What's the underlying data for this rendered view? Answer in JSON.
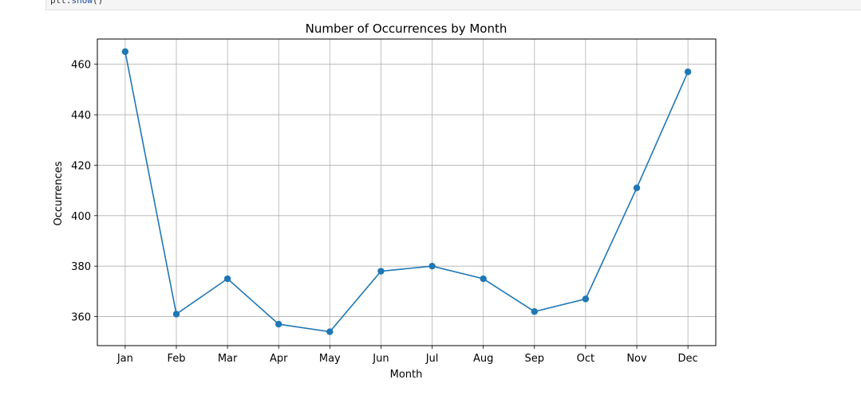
{
  "code_cell": {
    "object": "plt",
    "method": "show",
    "suffix": "()"
  },
  "chart_data": {
    "type": "line",
    "title": "Number of Occurrences by Month",
    "xlabel": "Month",
    "ylabel": "Occurrences",
    "categories": [
      "Jan",
      "Feb",
      "Mar",
      "Apr",
      "May",
      "Jun",
      "Jul",
      "Aug",
      "Sep",
      "Oct",
      "Nov",
      "Dec"
    ],
    "series": [
      {
        "values": [
          465,
          361,
          375,
          357,
          354,
          378,
          380,
          375,
          362,
          367,
          411,
          457
        ]
      }
    ],
    "ylim": [
      348.5,
      470
    ],
    "yticks": [
      360,
      380,
      400,
      420,
      440,
      460
    ],
    "grid": true,
    "marker": "circle",
    "color": "#1f77b4"
  }
}
